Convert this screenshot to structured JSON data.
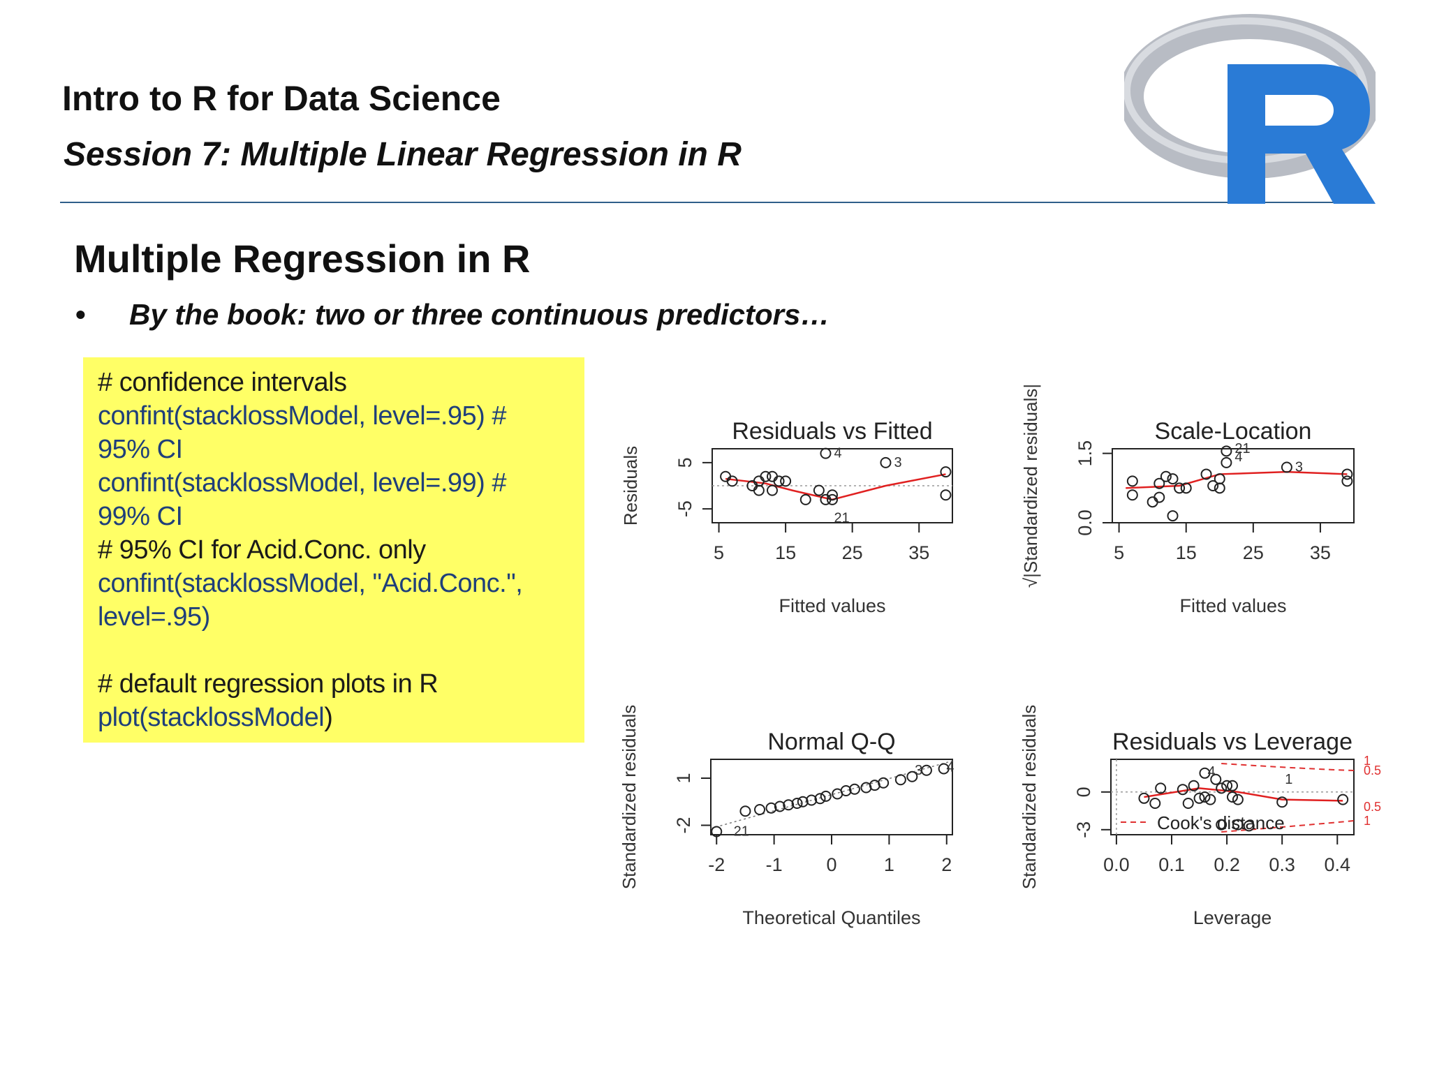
{
  "header": {
    "title": "Intro to R for Data Science",
    "subtitle": "Session 7: Multiple Linear Regression in R",
    "logo_letter": "R",
    "logo_colors": {
      "ring": "#b8bcc4",
      "letter": "#2a7bd6"
    }
  },
  "slide": {
    "heading": "Multiple Regression in R",
    "bullet": "By the book: two or three continuous predictors…",
    "bullet_symbol": "•"
  },
  "code_box": {
    "background": "#ffff66",
    "line1": "# confidence intervals",
    "line2": "confint(stacklossModel, level=.95) #",
    "line3": "95% CI",
    "line4": "confint(stacklossModel, level=.99) #",
    "line5": "99% CI",
    "line6": "# 95% CI for Acid.Conc. only",
    "line7": "confint(stacklossModel, \"Acid.Conc.\",",
    "line8": "level=.95)",
    "line9": "# default regression plots in R",
    "line10a": "plot(stacklossModel",
    "line10b": ")"
  },
  "chart_data": [
    {
      "type": "scatter",
      "title": "Residuals vs Fitted",
      "xlabel": "Fitted values",
      "ylabel": "Residuals",
      "xticks": [
        "5",
        "15",
        "25",
        "35"
      ],
      "yticks": [
        "-5",
        "5"
      ],
      "xlim": [
        4,
        40
      ],
      "ylim": [
        -8,
        8
      ],
      "points": [
        [
          6,
          2
        ],
        [
          7,
          1
        ],
        [
          10,
          0
        ],
        [
          11,
          1
        ],
        [
          11,
          -1
        ],
        [
          12,
          2
        ],
        [
          13,
          2
        ],
        [
          13,
          -1
        ],
        [
          14,
          1
        ],
        [
          15,
          1
        ],
        [
          18,
          -3
        ],
        [
          20,
          -1
        ],
        [
          21,
          -3
        ],
        [
          22,
          -2
        ],
        [
          22,
          -3
        ],
        [
          21,
          7
        ],
        [
          30,
          5
        ],
        [
          39,
          3
        ],
        [
          39,
          -2
        ]
      ],
      "labels": [
        {
          "x": 21,
          "y": 7,
          "text": "4"
        },
        {
          "x": 30,
          "y": 5,
          "text": "3"
        },
        {
          "x": 21,
          "y": -7,
          "text": "21"
        }
      ],
      "smooth": [
        [
          6,
          1.5
        ],
        [
          12,
          0.5
        ],
        [
          16,
          -1
        ],
        [
          22,
          -3
        ],
        [
          30,
          0
        ],
        [
          39,
          2.5
        ]
      ],
      "reference_line": 0
    },
    {
      "type": "scatter",
      "title": "Scale-Location",
      "xlabel": "Fitted values",
      "ylabel": "√|Standardized residuals|",
      "xticks": [
        "5",
        "15",
        "25",
        "35"
      ],
      "yticks": [
        "0.0",
        "1.5"
      ],
      "xlim": [
        4,
        40
      ],
      "ylim": [
        0,
        1.6
      ],
      "points": [
        [
          7,
          0.9
        ],
        [
          7,
          0.6
        ],
        [
          10,
          0.45
        ],
        [
          11,
          0.85
        ],
        [
          11,
          0.55
        ],
        [
          12,
          1.0
        ],
        [
          13,
          0.95
        ],
        [
          13,
          0.15
        ],
        [
          14,
          0.75
        ],
        [
          15,
          0.75
        ],
        [
          18,
          1.05
        ],
        [
          19,
          0.8
        ],
        [
          20,
          0.95
        ],
        [
          20,
          0.75
        ],
        [
          21,
          1.55
        ],
        [
          21,
          1.3
        ],
        [
          30,
          1.2
        ],
        [
          39,
          1.05
        ],
        [
          39,
          0.9
        ]
      ],
      "labels": [
        {
          "x": 21,
          "y": 1.6,
          "text": "21"
        },
        {
          "x": 21,
          "y": 1.42,
          "text": "4"
        },
        {
          "x": 30,
          "y": 1.2,
          "text": "3"
        }
      ],
      "smooth": [
        [
          6,
          0.75
        ],
        [
          14,
          0.8
        ],
        [
          20,
          1.05
        ],
        [
          30,
          1.1
        ],
        [
          39,
          1.05
        ]
      ]
    },
    {
      "type": "scatter",
      "title": "Normal Q-Q",
      "xlabel": "Theoretical Quantiles",
      "ylabel": "Standardized residuals",
      "xticks": [
        "-2",
        "-1",
        "0",
        "1",
        "2"
      ],
      "yticks": [
        "-2",
        "1"
      ],
      "xlim": [
        -2.1,
        2.1
      ],
      "ylim": [
        -2.6,
        2.2
      ],
      "points": [
        [
          -2.0,
          -2.4
        ],
        [
          -1.5,
          -1.1
        ],
        [
          -1.25,
          -1.0
        ],
        [
          -1.05,
          -0.9
        ],
        [
          -0.9,
          -0.8
        ],
        [
          -0.75,
          -0.7
        ],
        [
          -0.6,
          -0.6
        ],
        [
          -0.5,
          -0.5
        ],
        [
          -0.35,
          -0.4
        ],
        [
          -0.2,
          -0.3
        ],
        [
          -0.1,
          -0.15
        ],
        [
          0.1,
          0.0
        ],
        [
          0.25,
          0.2
        ],
        [
          0.4,
          0.3
        ],
        [
          0.6,
          0.4
        ],
        [
          0.75,
          0.55
        ],
        [
          0.9,
          0.7
        ],
        [
          1.2,
          0.9
        ],
        [
          1.4,
          1.1
        ],
        [
          1.65,
          1.5
        ],
        [
          1.95,
          1.6
        ]
      ],
      "labels": [
        {
          "x": 1.3,
          "y": 1.5,
          "text": "3"
        },
        {
          "x": 1.85,
          "y": 1.7,
          "text": "4"
        },
        {
          "x": -1.85,
          "y": -2.4,
          "text": "21"
        }
      ],
      "reference_line": "qq"
    },
    {
      "type": "scatter",
      "title": "Residuals vs Leverage",
      "xlabel": "Leverage",
      "ylabel": "Standardized residuals",
      "xticks": [
        "0.0",
        "0.1",
        "0.2",
        "0.3",
        "0.4"
      ],
      "yticks": [
        "-3",
        "0"
      ],
      "xlim": [
        -0.01,
        0.43
      ],
      "ylim": [
        -3.4,
        2.6
      ],
      "points": [
        [
          0.05,
          -0.5
        ],
        [
          0.07,
          -0.9
        ],
        [
          0.08,
          0.3
        ],
        [
          0.12,
          0.2
        ],
        [
          0.13,
          -0.9
        ],
        [
          0.14,
          0.5
        ],
        [
          0.15,
          -0.5
        ],
        [
          0.16,
          -0.4
        ],
        [
          0.17,
          -0.6
        ],
        [
          0.16,
          1.5
        ],
        [
          0.18,
          1.0
        ],
        [
          0.19,
          0.3
        ],
        [
          0.2,
          0.5
        ],
        [
          0.21,
          -0.4
        ],
        [
          0.21,
          0.5
        ],
        [
          0.22,
          -0.6
        ],
        [
          0.3,
          -0.8
        ],
        [
          0.41,
          -0.6
        ],
        [
          0.19,
          -2.6
        ],
        [
          0.22,
          -2.6
        ],
        [
          0.24,
          -2.7
        ]
      ],
      "labels": [
        {
          "x": 0.15,
          "y": 1.6,
          "text": "4"
        },
        {
          "x": 0.29,
          "y": 1.0,
          "text": "1"
        }
      ],
      "smooth": [
        [
          0.05,
          -0.4
        ],
        [
          0.15,
          0.3
        ],
        [
          0.22,
          0.0
        ],
        [
          0.3,
          -0.6
        ],
        [
          0.41,
          -0.7
        ]
      ],
      "cooks_labels": [
        {
          "side": "top",
          "values": [
            "1",
            "0.5"
          ]
        },
        {
          "side": "bottom",
          "values": [
            "0.5",
            "1"
          ]
        }
      ],
      "legend": "Cook's distance"
    }
  ]
}
